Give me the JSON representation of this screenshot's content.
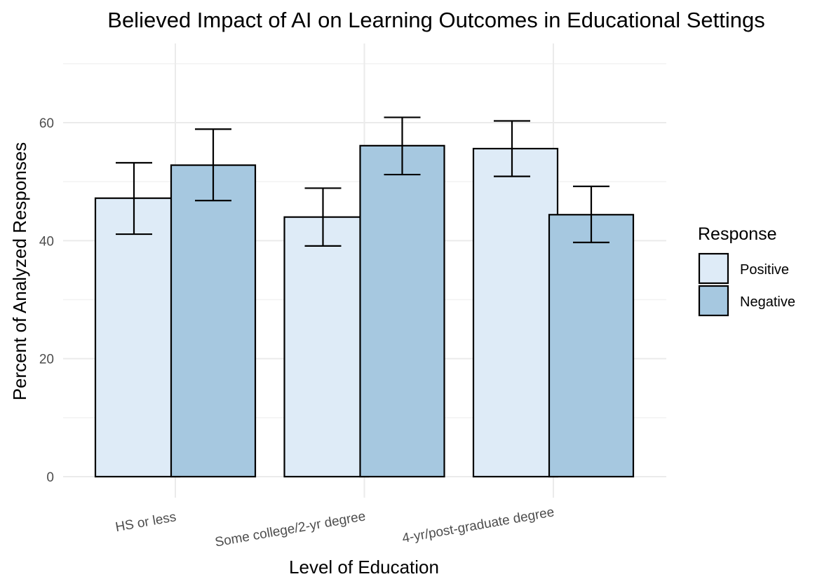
{
  "chart_data": {
    "type": "bar",
    "title": "Believed Impact of AI on Learning Outcomes in Educational Settings",
    "xlabel": "Level of Education",
    "ylabel": "Percent of Analyzed Responses",
    "categories": [
      "HS or less",
      "Some college/2-yr degree",
      "4-yr/post-graduate degree"
    ],
    "series": [
      {
        "name": "Positive",
        "color": "#deebf7",
        "values": [
          47.2,
          44.0,
          55.6
        ],
        "error_low": [
          41.1,
          39.1,
          50.9
        ],
        "error_high": [
          53.2,
          48.9,
          60.3
        ]
      },
      {
        "name": "Negative",
        "color": "#a6c8e0",
        "values": [
          52.8,
          56.1,
          44.4
        ],
        "error_low": [
          46.8,
          51.2,
          39.7
        ],
        "error_high": [
          58.9,
          60.9,
          49.2
        ]
      }
    ],
    "legend_title": "Response",
    "legend_position": "right",
    "ylim": [
      0,
      72
    ],
    "yticks": [
      0,
      20,
      40,
      60
    ],
    "grid": true
  }
}
